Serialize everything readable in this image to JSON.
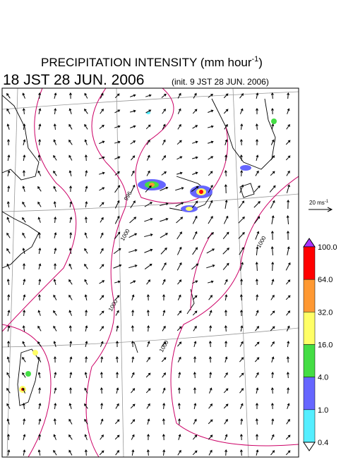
{
  "header": {
    "title_main": "PRECIPITATION INTENSITY (mm hour",
    "title_sup": "-1",
    "title_end": ")",
    "time": "18 JST 28 JUN. 2006",
    "init": "(init. 9 JST 28 JUN. 2006)"
  },
  "wind_reference": {
    "label": "20 ms",
    "sup": "-1"
  },
  "colorbar": {
    "labels": [
      "100.0",
      "64.0",
      "32.0",
      "16.0",
      "4.0",
      "1.0",
      "0.4"
    ],
    "colors": [
      "#ff0000",
      "#ff9933",
      "#ffff66",
      "#44dd44",
      "#6666ff",
      "#55eeff"
    ],
    "over_color": "#aa33ff",
    "under_color": "#ffffff"
  },
  "map": {
    "contour_labels": [
      "996",
      "1000",
      "1000",
      "1000",
      "1000"
    ],
    "contour_color": "#cc0066"
  }
}
